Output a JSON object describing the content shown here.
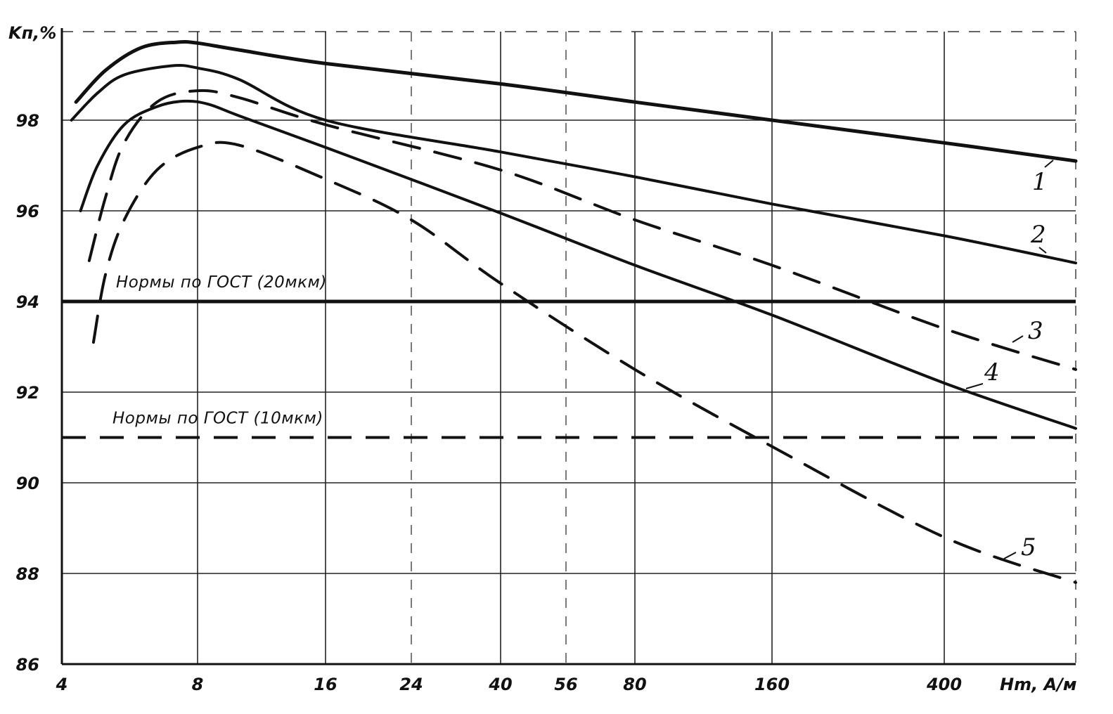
{
  "chart_data": {
    "type": "line",
    "title": "",
    "ylabel": "Kп,%",
    "xlabel": "Hm, A/м",
    "x_ticks": [
      4,
      8,
      16,
      24,
      40,
      56,
      80,
      160,
      400
    ],
    "y_ticks": [
      86,
      88,
      90,
      92,
      94,
      96,
      98
    ],
    "ylim": [
      86,
      100
    ],
    "xlim": [
      4,
      700
    ],
    "x_scale": "log",
    "grid": true,
    "reference_lines": [
      {
        "label": "Нормы по ГОСТ (20мкм)",
        "y": 94,
        "style": "solid"
      },
      {
        "label": "Нормы по ГОСТ (10мкм)",
        "y": 91,
        "style": "dashed"
      }
    ],
    "series": [
      {
        "name": "1",
        "style": "solid",
        "bold": true,
        "points": [
          [
            4.3,
            98.4
          ],
          [
            5.0,
            99.1
          ],
          [
            6.0,
            99.6
          ],
          [
            7.2,
            99.72
          ],
          [
            8,
            99.7
          ],
          [
            10,
            99.55
          ],
          [
            16,
            99.25
          ],
          [
            40,
            98.8
          ],
          [
            80,
            98.4
          ],
          [
            160,
            98.0
          ],
          [
            400,
            97.5
          ],
          [
            700,
            97.1
          ]
        ]
      },
      {
        "name": "2",
        "style": "solid",
        "bold": false,
        "points": [
          [
            4.2,
            98.0
          ],
          [
            4.8,
            98.6
          ],
          [
            5.5,
            99.0
          ],
          [
            7.0,
            99.2
          ],
          [
            8,
            99.15
          ],
          [
            10,
            98.9
          ],
          [
            16,
            98.0
          ],
          [
            40,
            97.3
          ],
          [
            80,
            96.75
          ],
          [
            160,
            96.15
          ],
          [
            400,
            95.45
          ],
          [
            700,
            94.85
          ]
        ]
      },
      {
        "name": "3",
        "style": "dashed",
        "bold": false,
        "points": [
          [
            4.6,
            94.9
          ],
          [
            5.0,
            96.3
          ],
          [
            5.5,
            97.5
          ],
          [
            6.5,
            98.4
          ],
          [
            8,
            98.65
          ],
          [
            10,
            98.5
          ],
          [
            16,
            97.9
          ],
          [
            40,
            96.9
          ],
          [
            80,
            95.8
          ],
          [
            160,
            94.8
          ],
          [
            400,
            93.4
          ],
          [
            700,
            92.5
          ]
        ]
      },
      {
        "name": "4",
        "style": "solid",
        "bold": false,
        "points": [
          [
            4.4,
            96.0
          ],
          [
            4.8,
            97.0
          ],
          [
            5.5,
            97.9
          ],
          [
            6.5,
            98.3
          ],
          [
            7.5,
            98.42
          ],
          [
            8.5,
            98.35
          ],
          [
            10,
            98.1
          ],
          [
            16,
            97.4
          ],
          [
            40,
            95.95
          ],
          [
            80,
            94.8
          ],
          [
            160,
            93.7
          ],
          [
            400,
            92.2
          ],
          [
            700,
            91.2
          ]
        ]
      },
      {
        "name": "5",
        "style": "dashed",
        "bold": false,
        "points": [
          [
            4.7,
            93.1
          ],
          [
            5.0,
            94.6
          ],
          [
            5.5,
            95.8
          ],
          [
            6.5,
            96.9
          ],
          [
            8,
            97.4
          ],
          [
            10,
            97.45
          ],
          [
            16,
            96.7
          ],
          [
            24,
            95.8
          ],
          [
            40,
            94.4
          ],
          [
            80,
            92.5
          ],
          [
            160,
            90.8
          ],
          [
            400,
            88.8
          ],
          [
            700,
            87.8
          ]
        ]
      }
    ]
  }
}
